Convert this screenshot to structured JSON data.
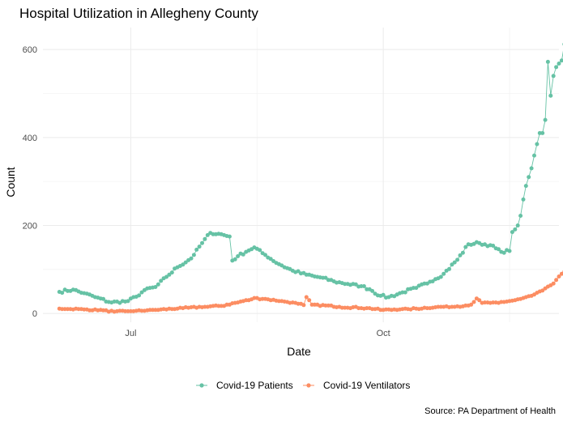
{
  "chart_data": {
    "type": "line",
    "title": "Hospital Utilization in Allegheny County",
    "xlabel": "Date",
    "ylabel": "Count",
    "caption": "Source: PA Department of Health",
    "x_start": "2020-06-05",
    "x_end": "2020-11-29",
    "xlim": [
      "2020-05-30",
      "2020-12-04"
    ],
    "ylim": [
      -20,
      650
    ],
    "x_ticks": [
      {
        "date": "2020-07-01",
        "label": "Jul"
      },
      {
        "date": "2020-10-01",
        "label": "Oct"
      }
    ],
    "x_minor_ticks": [
      "2020-08-16",
      "2020-11-16"
    ],
    "y_ticks": [
      0,
      200,
      400,
      600
    ],
    "grid": true,
    "legend_position": "bottom",
    "series": [
      {
        "name": "Covid-19 Patients",
        "color": "#66c2a5",
        "end_label": "626",
        "anchors": [
          [
            "2020-06-05",
            49
          ],
          [
            "2020-06-10",
            54
          ],
          [
            "2020-06-14",
            46
          ],
          [
            "2020-06-18",
            37
          ],
          [
            "2020-06-24",
            25
          ],
          [
            "2020-06-30",
            28
          ],
          [
            "2020-07-03",
            38
          ],
          [
            "2020-07-06",
            53
          ],
          [
            "2020-07-10",
            60
          ],
          [
            "2020-07-14",
            83
          ],
          [
            "2020-07-18",
            105
          ],
          [
            "2020-07-23",
            125
          ],
          [
            "2020-07-27",
            160
          ],
          [
            "2020-07-30",
            183
          ],
          [
            "2020-08-03",
            180
          ],
          [
            "2020-08-06",
            175
          ],
          [
            "2020-08-07",
            120
          ],
          [
            "2020-08-09",
            130
          ],
          [
            "2020-08-12",
            140
          ],
          [
            "2020-08-15",
            150
          ],
          [
            "2020-08-19",
            133
          ],
          [
            "2020-08-24",
            112
          ],
          [
            "2020-08-29",
            97
          ],
          [
            "2020-09-03",
            88
          ],
          [
            "2020-09-08",
            82
          ],
          [
            "2020-09-13",
            73
          ],
          [
            "2020-09-18",
            67
          ],
          [
            "2020-09-23",
            62
          ],
          [
            "2020-09-26",
            55
          ],
          [
            "2020-09-30",
            40
          ],
          [
            "2020-10-03",
            37
          ],
          [
            "2020-10-08",
            48
          ],
          [
            "2020-10-13",
            58
          ],
          [
            "2020-10-18",
            72
          ],
          [
            "2020-10-23",
            90
          ],
          [
            "2020-10-28",
            122
          ],
          [
            "2020-11-01",
            157
          ],
          [
            "2020-11-05",
            160
          ],
          [
            "2020-11-09",
            155
          ],
          [
            "2020-11-13",
            140
          ],
          [
            "2020-11-16",
            142
          ],
          [
            "2020-11-17",
            185
          ],
          [
            "2020-11-19",
            200
          ],
          [
            "2020-11-20",
            222
          ],
          [
            "2020-11-22",
            290
          ],
          [
            "2020-11-24",
            330
          ],
          [
            "2020-11-26",
            385
          ],
          [
            "2020-11-27",
            410
          ],
          [
            "2020-11-28",
            410
          ],
          [
            "2020-11-29",
            440
          ]
        ],
        "tail_points": [
          [
            "2020-11-30",
            572
          ],
          [
            "2020-12-01",
            495
          ],
          [
            "2020-12-02",
            540
          ],
          [
            "2020-12-03",
            560
          ],
          [
            "2020-12-04",
            568
          ],
          [
            "2020-12-05",
            575
          ],
          [
            "2020-12-06",
            612
          ],
          [
            "2020-12-07",
            626
          ]
        ]
      },
      {
        "name": "Covid-19 Ventilators",
        "color": "#fc8d62",
        "end_label": "99",
        "anchors": [
          [
            "2020-06-05",
            11
          ],
          [
            "2020-06-15",
            9
          ],
          [
            "2020-06-21",
            7
          ],
          [
            "2020-06-25",
            4
          ],
          [
            "2020-07-01",
            5
          ],
          [
            "2020-07-10",
            8
          ],
          [
            "2020-07-20",
            12
          ],
          [
            "2020-07-28",
            15
          ],
          [
            "2020-08-03",
            17
          ],
          [
            "2020-08-08",
            24
          ],
          [
            "2020-08-13",
            30
          ],
          [
            "2020-08-15",
            35
          ],
          [
            "2020-08-20",
            32
          ],
          [
            "2020-08-26",
            27
          ],
          [
            "2020-08-31",
            22
          ],
          [
            "2020-09-02",
            19
          ],
          [
            "2020-09-03",
            37
          ],
          [
            "2020-09-05",
            20
          ],
          [
            "2020-09-15",
            15
          ],
          [
            "2020-09-25",
            12
          ],
          [
            "2020-10-01",
            8
          ],
          [
            "2020-10-10",
            10
          ],
          [
            "2020-10-20",
            14
          ],
          [
            "2020-10-28",
            16
          ],
          [
            "2020-11-02",
            20
          ],
          [
            "2020-11-04",
            34
          ],
          [
            "2020-11-06",
            24
          ],
          [
            "2020-11-12",
            24
          ],
          [
            "2020-11-18",
            30
          ],
          [
            "2020-11-24",
            40
          ],
          [
            "2020-11-28",
            52
          ],
          [
            "2020-12-02",
            68
          ],
          [
            "2020-12-04",
            84
          ],
          [
            "2020-12-07",
            99
          ]
        ]
      }
    ]
  }
}
